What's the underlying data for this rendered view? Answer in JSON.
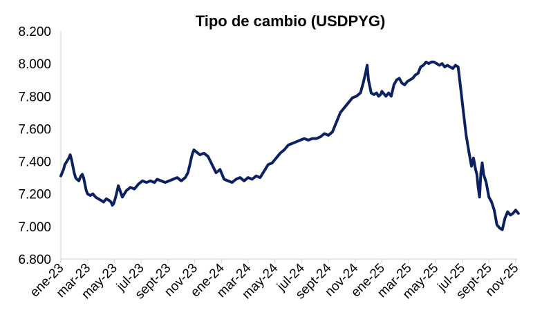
{
  "chart_data": {
    "type": "line",
    "title": "Tipo de cambio (USDPYG)",
    "xlabel": "",
    "ylabel": "",
    "ylim": [
      6800,
      8200
    ],
    "yticks": [
      6800,
      7000,
      7200,
      7400,
      7600,
      7800,
      8000,
      8200
    ],
    "ytick_labels": [
      "6.800",
      "7.000",
      "7.200",
      "7.400",
      "7.600",
      "7.800",
      "8.000",
      "8.200"
    ],
    "xticks": [
      "ene-23",
      "mar-23",
      "may-23",
      "jul-23",
      "sept-23",
      "nov-23",
      "ene-24",
      "mar-24",
      "may-24",
      "jul-24",
      "sept-24",
      "nov-24",
      "ene-25",
      "mar-25",
      "may-25",
      "jul-25",
      "sept-25",
      "nov-25"
    ],
    "grid": false,
    "legend": "none",
    "line_color": "#0d2162",
    "series": [
      {
        "x_month_index": [
          0,
          0.1,
          0.2,
          0.3,
          0.45,
          0.6,
          0.7,
          0.8,
          0.9,
          1.0,
          1.1,
          1.2,
          1.35,
          1.5,
          1.6,
          1.7,
          1.8,
          1.9,
          2.0,
          2.2,
          2.4,
          2.6,
          2.8,
          3.0,
          3.2,
          3.4,
          3.6,
          3.75,
          3.85,
          3.95,
          4.1,
          4.3,
          4.6,
          4.9,
          5.2,
          5.5,
          5.8,
          6.1,
          6.4,
          6.7,
          7.0,
          7.2,
          7.5,
          7.8,
          8.1,
          8.4,
          8.7,
          9.0,
          9.3,
          9.5,
          9.65,
          9.75,
          9.85,
          9.95,
          10.1,
          10.4,
          10.7,
          11.0,
          11.3,
          11.6,
          11.9,
          12.2,
          12.5,
          12.8,
          13.1,
          13.4,
          13.7,
          14.0,
          14.3,
          14.6,
          14.9,
          15.2,
          15.5,
          15.8,
          16.1,
          16.4,
          16.7,
          17.0,
          17.3,
          17.6,
          17.9,
          18.2,
          18.5,
          18.8,
          19.1,
          19.4,
          19.7,
          20.0,
          20.3,
          20.6,
          20.9,
          21.2,
          21.5,
          21.8,
          22.1,
          22.4,
          22.6,
          22.8,
          22.9,
          23.0,
          23.2,
          23.4,
          23.6,
          23.75,
          23.9,
          24.0,
          24.1,
          24.3,
          24.5,
          24.7,
          24.9,
          25.1,
          25.3,
          25.5,
          25.7,
          25.9,
          26.1,
          26.3,
          26.5,
          26.7,
          26.9,
          27.1,
          27.3,
          27.5,
          27.7,
          27.9,
          28.1,
          28.3,
          28.5,
          28.7,
          28.9,
          29.1,
          29.3,
          29.5,
          29.7,
          29.9,
          30.1,
          30.3,
          30.5,
          30.7,
          30.85,
          31.0,
          31.1,
          31.2,
          31.3,
          31.4,
          31.5,
          31.6,
          31.8,
          32.0,
          32.2,
          32.4,
          32.6,
          32.8,
          33.0,
          33.2,
          33.4,
          33.6,
          33.8,
          34.0,
          34.2
        ],
        "values": [
          7310,
          7330,
          7350,
          7380,
          7400,
          7420,
          7440,
          7410,
          7370,
          7330,
          7300,
          7290,
          7280,
          7310,
          7320,
          7300,
          7260,
          7220,
          7200,
          7190,
          7200,
          7180,
          7170,
          7160,
          7150,
          7170,
          7160,
          7150,
          7130,
          7140,
          7180,
          7250,
          7180,
          7220,
          7240,
          7230,
          7260,
          7280,
          7270,
          7280,
          7270,
          7290,
          7280,
          7270,
          7280,
          7290,
          7300,
          7280,
          7300,
          7330,
          7380,
          7420,
          7450,
          7470,
          7460,
          7440,
          7450,
          7430,
          7380,
          7330,
          7350,
          7290,
          7280,
          7270,
          7290,
          7300,
          7280,
          7300,
          7290,
          7310,
          7300,
          7340,
          7380,
          7390,
          7420,
          7450,
          7470,
          7500,
          7510,
          7520,
          7530,
          7540,
          7530,
          7540,
          7540,
          7550,
          7570,
          7560,
          7580,
          7640,
          7700,
          7730,
          7760,
          7790,
          7800,
          7820,
          7880,
          7950,
          7990,
          7900,
          7820,
          7810,
          7820,
          7800,
          7810,
          7830,
          7820,
          7800,
          7820,
          7800,
          7870,
          7900,
          7910,
          7880,
          7870,
          7890,
          7900,
          7910,
          7930,
          7940,
          7980,
          7990,
          8010,
          8000,
          8010,
          8010,
          8000,
          7990,
          8000,
          7980,
          7990,
          7980,
          7970,
          7990,
          7980,
          7840,
          7700,
          7560,
          7460,
          7370,
          7420,
          7350,
          7320,
          7240,
          7180,
          7330,
          7390,
          7320,
          7270,
          7180,
          7150,
          7100,
          7010,
          6990,
          6980,
          7050,
          7090,
          7070,
          7080,
          7100,
          7080
        ]
      }
    ]
  }
}
